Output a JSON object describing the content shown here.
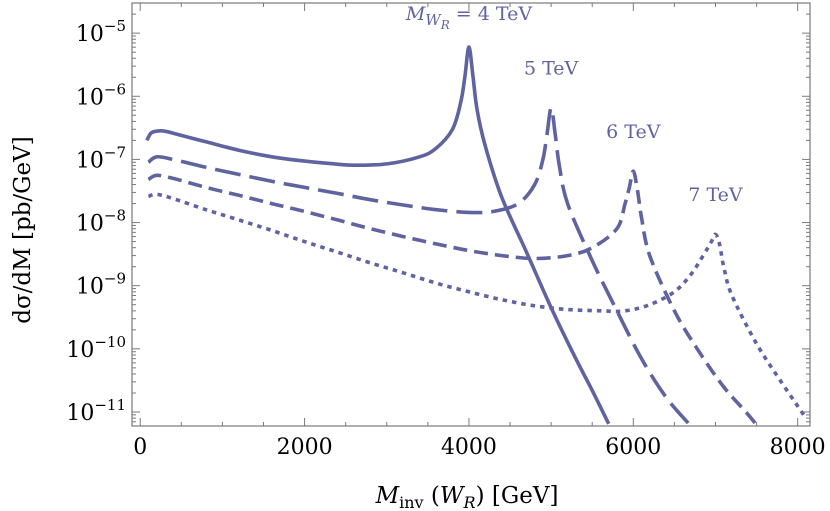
{
  "chart_data": {
    "type": "line",
    "xlabel": "M_inv (W_R) [GeV]",
    "xlabel_parts": {
      "main": "M",
      "sub": "inv",
      "paren_main": "W",
      "paren_sub": "R",
      "unit": "[GeV]"
    },
    "ylabel": "dσ/dM [pb/GeV]",
    "ylabel_parts": {
      "text": "dσ/dM",
      "unit": "[pb/GeV]"
    },
    "xlim": [
      -100,
      8150
    ],
    "ylim": [
      6e-12,
      3e-05
    ],
    "yscale": "log",
    "grid": false,
    "legend": "none",
    "x_ticks": [
      0,
      2000,
      4000,
      6000,
      8000
    ],
    "y_ticks": [
      {
        "value": 1e-05,
        "base": "10",
        "exp": "−5"
      },
      {
        "value": 1e-06,
        "base": "10",
        "exp": "−6"
      },
      {
        "value": 1e-07,
        "base": "10",
        "exp": "−7"
      },
      {
        "value": 1e-08,
        "base": "10",
        "exp": "−8"
      },
      {
        "value": 1e-09,
        "base": "10",
        "exp": "−9"
      },
      {
        "value": 1e-10,
        "base": "10",
        "exp": "−10"
      },
      {
        "value": 1e-11,
        "base": "10",
        "exp": "−11"
      }
    ],
    "line_color": "#5f63a0",
    "series": [
      {
        "style": "solid",
        "x": [
          80,
          130,
          200,
          300,
          500,
          800,
          1200,
          1600,
          2000,
          2400,
          2600,
          3000,
          3400,
          3600,
          3800,
          3900,
          3950,
          4000,
          4050,
          4100,
          4200,
          4400,
          4700,
          5000,
          5300,
          5500,
          5700
        ],
        "y": [
          2e-07,
          2.6e-07,
          2.8e-07,
          2.8e-07,
          2.4e-07,
          1.9e-07,
          1.4e-07,
          1.1e-07,
          9.4e-08,
          8.4e-08,
          8.1e-08,
          8.5e-08,
          1.1e-07,
          1.5e-07,
          3e-07,
          8e-07,
          2e-06,
          6e-06,
          2e-06,
          6e-07,
          1.6e-07,
          2.5e-08,
          3.4e-09,
          4.5e-10,
          7e-11,
          2.2e-11,
          6.5e-12
        ]
      },
      {
        "style": "long-dash",
        "x": [
          100,
          200,
          400,
          800,
          1200,
          1600,
          2000,
          2400,
          2800,
          3200,
          3600,
          4000,
          4300,
          4600,
          4800,
          4900,
          4950,
          5000,
          5050,
          5100,
          5200,
          5500,
          5800,
          6100,
          6400,
          6700,
          6900
        ],
        "y": [
          9e-08,
          1.1e-07,
          1e-07,
          7.5e-08,
          5.8e-08,
          4.5e-08,
          3.6e-08,
          2.9e-08,
          2.3e-08,
          1.9e-08,
          1.6e-08,
          1.45e-08,
          1.5e-08,
          2e-08,
          4e-08,
          1e-07,
          2.5e-07,
          6.5e-07,
          2.5e-07,
          8e-08,
          2e-08,
          2.5e-09,
          4e-10,
          7e-11,
          1.7e-11,
          6e-12,
          3e-12
        ]
      },
      {
        "style": "dash",
        "x": [
          100,
          200,
          400,
          800,
          1200,
          1600,
          2000,
          2400,
          2800,
          3200,
          3600,
          4000,
          4400,
          4800,
          5200,
          5500,
          5800,
          5900,
          5950,
          6000,
          6050,
          6100,
          6200,
          6500,
          6800,
          7100,
          7400,
          7700
        ],
        "y": [
          4.8e-08,
          5.6e-08,
          5e-08,
          3.6e-08,
          2.7e-08,
          2e-08,
          1.5e-08,
          1.1e-08,
          8e-09,
          6e-09,
          4.6e-09,
          3.6e-09,
          3e-09,
          2.7e-09,
          3e-09,
          4e-09,
          8e-09,
          2e-08,
          3.5e-08,
          6.5e-08,
          3.3e-08,
          1.2e-08,
          3e-09,
          4e-10,
          9e-11,
          2.5e-11,
          9e-12,
          3e-12
        ]
      },
      {
        "style": "dot",
        "x": [
          100,
          200,
          400,
          800,
          1200,
          1600,
          2000,
          2400,
          2800,
          3200,
          3600,
          4000,
          4400,
          4800,
          5200,
          5600,
          5900,
          6200,
          6500,
          6700,
          6850,
          6950,
          7000,
          7050,
          7100,
          7200,
          7500,
          7800,
          8100
        ],
        "y": [
          2.6e-08,
          2.8e-08,
          2.4e-08,
          1.6e-08,
          1.1e-08,
          7.5e-09,
          5e-09,
          3.4e-09,
          2.3e-09,
          1.6e-09,
          1.1e-09,
          8e-10,
          6e-10,
          4.8e-10,
          4.2e-10,
          4e-10,
          4e-10,
          5e-10,
          8e-10,
          1.5e-09,
          3e-09,
          5e-09,
          6.5e-09,
          4.5e-09,
          2e-09,
          7e-10,
          1.2e-10,
          3e-11,
          8e-12
        ]
      }
    ],
    "annotations": [
      {
        "text_main": "M",
        "text_sub": "W",
        "text_subsub": "R",
        "text_rest": " = 4 TeV",
        "x": 4000,
        "y": 1.6e-05
      },
      {
        "text": "5 TeV",
        "x": 5000,
        "y": 2.2e-06
      },
      {
        "text": "6 TeV",
        "x": 6000,
        "y": 2.2e-07
      },
      {
        "text": "7 TeV",
        "x": 7000,
        "y": 2.2e-08
      }
    ]
  }
}
